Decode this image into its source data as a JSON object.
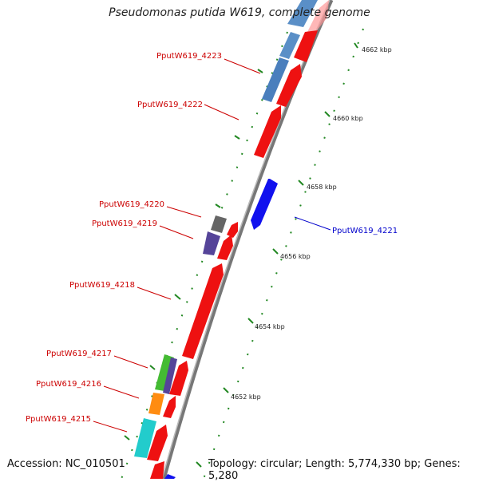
{
  "title": "Pseudomonas putida W619, complete genome",
  "footer": {
    "accession": "Accession: NC_010501",
    "topology": "Topology: circular; Length: 5,774,330 bp; Genes: 5,280"
  },
  "colors": {
    "forward_gene": "#ee1111",
    "reverse_gene": "#1111ee",
    "label_forward": "#cc0000",
    "label_reverse": "#0000cc",
    "backbone": "#888888",
    "tick_dots": "#228822"
  },
  "kbp_ticks": [
    "4662 kbp",
    "4660 kbp",
    "4658 kbp",
    "4656 kbp",
    "4654 kbp",
    "4652 kbp"
  ],
  "gene_labels": [
    {
      "name": "PputW619_4223",
      "strand": "forward"
    },
    {
      "name": "PputW619_4222",
      "strand": "forward"
    },
    {
      "name": "PputW619_4220",
      "strand": "forward"
    },
    {
      "name": "PputW619_4219",
      "strand": "forward"
    },
    {
      "name": "PputW619_4218",
      "strand": "forward"
    },
    {
      "name": "PputW619_4217",
      "strand": "forward"
    },
    {
      "name": "PputW619_4216",
      "strand": "forward"
    },
    {
      "name": "PputW619_4215",
      "strand": "forward"
    },
    {
      "name": "PputW619_4221",
      "strand": "reverse"
    }
  ]
}
